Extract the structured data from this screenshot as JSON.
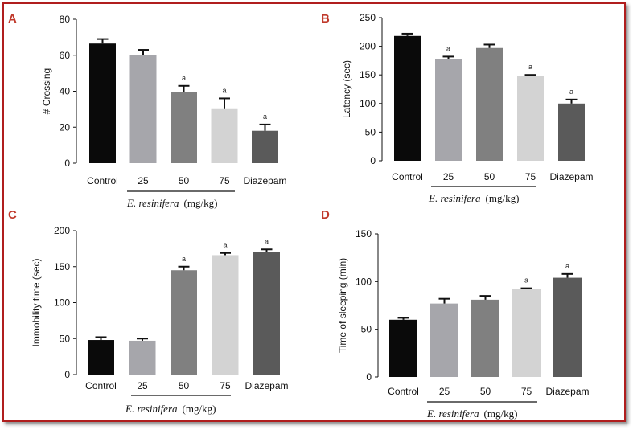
{
  "figure": {
    "group_label_species": "E. resinifera",
    "group_label_unit": "(mg/kg)",
    "colors": {
      "frame": "#b01e1e",
      "letters": "#c0392b"
    }
  },
  "chart_data": [
    {
      "panel": "A",
      "type": "bar",
      "ylabel": "# Crossing",
      "ylim": [
        0,
        80
      ],
      "yticks": [
        "0",
        "20",
        "40",
        "60",
        "80"
      ],
      "categories": [
        "Control",
        "25",
        "50",
        "75",
        "Diazepam"
      ],
      "values": [
        66.5,
        60,
        39.5,
        30.5,
        18
      ],
      "errors": [
        2.5,
        3,
        3.5,
        5.5,
        3.5
      ],
      "significance": [
        "",
        "",
        "a",
        "a",
        "a"
      ],
      "colors": [
        "#0a0a0a",
        "#a6a6ab",
        "#808080",
        "#d3d3d3",
        "#5a5a5a"
      ]
    },
    {
      "panel": "B",
      "type": "bar",
      "ylabel": "Latency (sec)",
      "ylim": [
        0,
        250
      ],
      "yticks": [
        "0",
        "50",
        "100",
        "150",
        "200",
        "250"
      ],
      "categories": [
        "Control",
        "25",
        "50",
        "75",
        "Diazepam"
      ],
      "values": [
        218,
        178,
        197,
        148,
        100
      ],
      "errors": [
        4,
        4,
        6,
        2,
        7
      ],
      "significance": [
        "",
        "a",
        "",
        "a",
        "a"
      ],
      "colors": [
        "#0a0a0a",
        "#a6a6ab",
        "#808080",
        "#d3d3d3",
        "#5a5a5a"
      ]
    },
    {
      "panel": "C",
      "type": "bar",
      "ylabel": "Immobility time (sec)",
      "ylim": [
        0,
        200
      ],
      "yticks": [
        "0",
        "50",
        "100",
        "150",
        "200"
      ],
      "categories": [
        "Control",
        "25",
        "50",
        "75",
        "Diazepam"
      ],
      "values": [
        48,
        47,
        145,
        166,
        170
      ],
      "errors": [
        4,
        3,
        5,
        3,
        4
      ],
      "significance": [
        "",
        "",
        "a",
        "a",
        "a"
      ],
      "colors": [
        "#0a0a0a",
        "#a6a6ab",
        "#808080",
        "#d3d3d3",
        "#5a5a5a"
      ]
    },
    {
      "panel": "D",
      "type": "bar",
      "ylabel": "Time of sleeping (min)",
      "ylim": [
        0,
        150
      ],
      "yticks": [
        "0",
        "50",
        "100",
        "150"
      ],
      "categories": [
        "Control",
        "25",
        "50",
        "75",
        "Diazepam"
      ],
      "values": [
        60,
        77,
        81,
        92,
        104
      ],
      "errors": [
        2,
        5,
        4,
        1,
        4
      ],
      "significance": [
        "",
        "",
        "",
        "a",
        "a"
      ],
      "colors": [
        "#0a0a0a",
        "#a6a6ab",
        "#808080",
        "#d3d3d3",
        "#5a5a5a"
      ]
    }
  ]
}
